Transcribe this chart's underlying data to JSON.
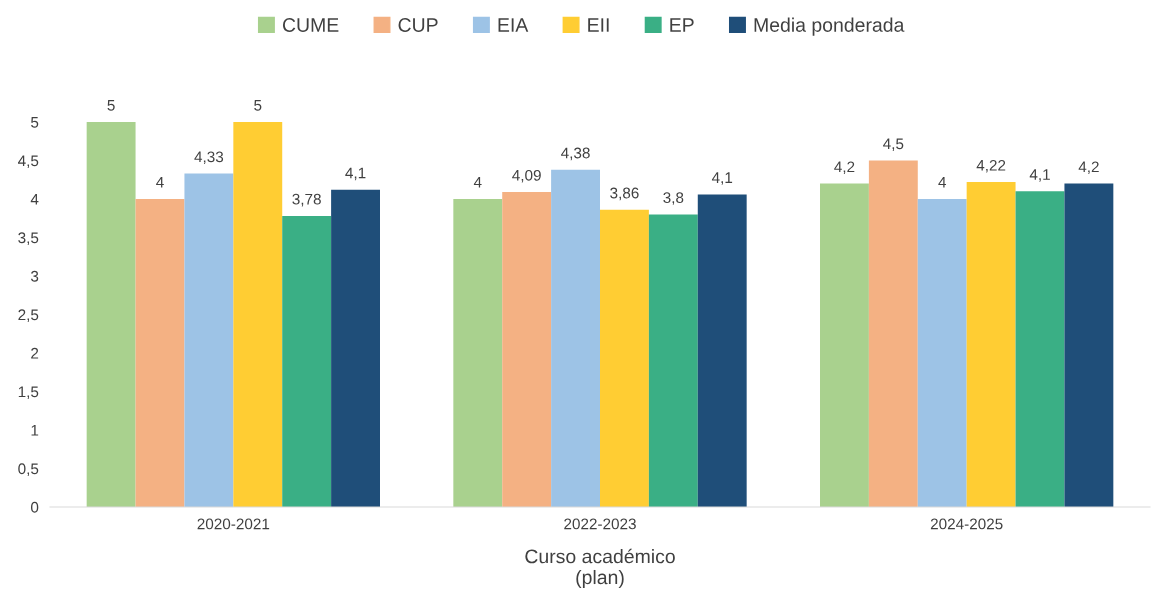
{
  "chart_data": {
    "type": "bar",
    "categories": [
      "2020-2021",
      "2022-2023",
      "2024-2025"
    ],
    "xlabel": "Curso académico\n(plan)",
    "series": [
      {
        "name": "CUME",
        "color": "#a9d18e",
        "values": [
          5,
          4,
          4.2
        ],
        "value_labels": [
          "5",
          "4",
          "4,2"
        ]
      },
      {
        "name": "CUP",
        "color": "#f4b183",
        "values": [
          4,
          4.09,
          4.5
        ],
        "value_labels": [
          "4",
          "4,09",
          "4,5"
        ]
      },
      {
        "name": "EIA",
        "color": "#9dc3e6",
        "values": [
          4.33,
          4.38,
          4
        ],
        "value_labels": [
          "4,33",
          "4,38",
          "4"
        ]
      },
      {
        "name": "EII",
        "color": "#ffcd33",
        "values": [
          5,
          3.86,
          4.22
        ],
        "value_labels": [
          "5",
          "3,86",
          "4,22"
        ]
      },
      {
        "name": "EP",
        "color": "#3aaf85",
        "values": [
          3.78,
          3.8,
          4.1
        ],
        "value_labels": [
          "3,78",
          "3,8",
          "4,1"
        ]
      },
      {
        "name": "Media ponderada",
        "color": "#1f4e79",
        "values": [
          4.12,
          4.06,
          4.2
        ],
        "value_labels": [
          "4,1",
          "4,1",
          "4,2"
        ]
      }
    ],
    "ylim": [
      0,
      5
    ],
    "yticks": [
      0,
      {
        "value": 0.5,
        "label": "0,5"
      },
      1,
      {
        "value": 1.5,
        "label": "1,5"
      },
      2,
      {
        "value": 2.5,
        "label": "2,5"
      },
      3,
      {
        "value": 3.5,
        "label": "3,5"
      },
      4,
      {
        "value": 4.5,
        "label": "4,5"
      },
      5
    ],
    "legend": "top"
  }
}
